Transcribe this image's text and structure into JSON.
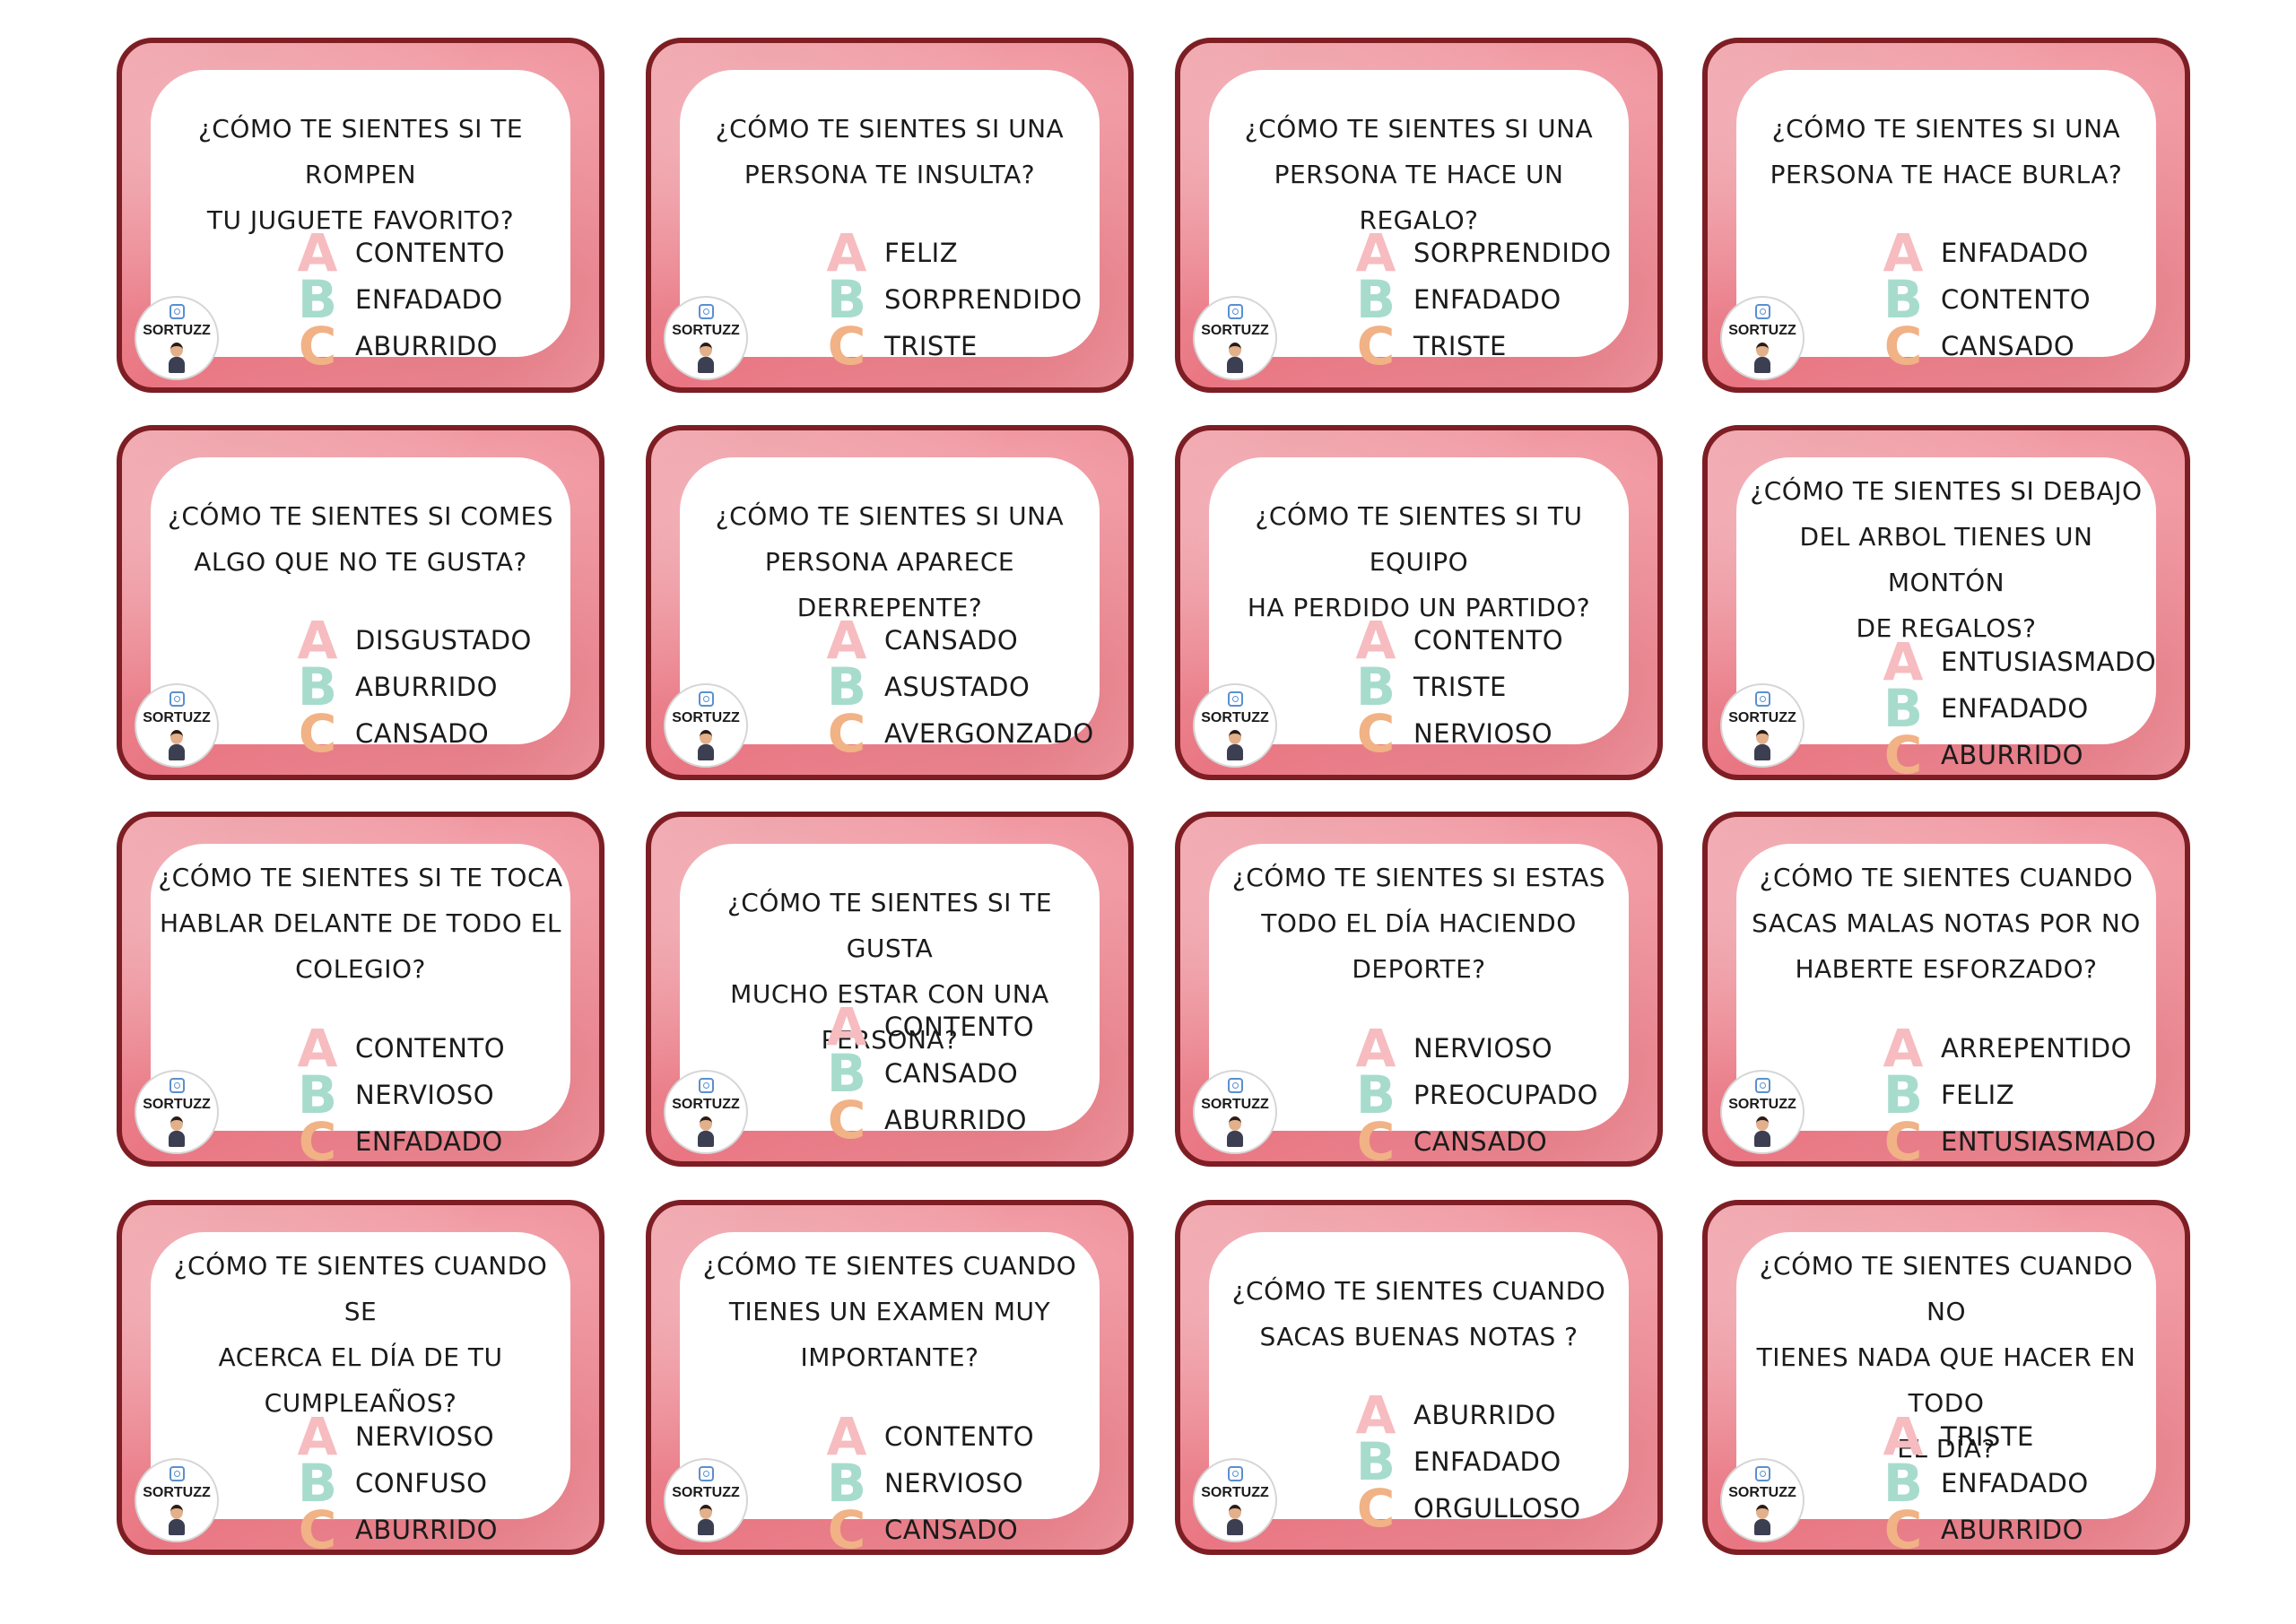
{
  "letters": {
    "a": "A",
    "b": "B",
    "c": "C"
  },
  "logo": {
    "text": "SORTUZZ",
    "icon": "instagram-icon"
  },
  "colors": {
    "card_border": "#7d1e24",
    "card_background": "#e97682",
    "letter_a": "#f6bcc0",
    "letter_b": "#a7dccd",
    "letter_c": "#f1b286"
  },
  "cards": [
    {
      "question": "¿CÓMO TE SIENTES SI TE ROMPEN\nTU JUGUETE FAVORITO?",
      "options": [
        "CONTENTO",
        "ENFADADO",
        "ABURRIDO"
      ]
    },
    {
      "question": "¿CÓMO TE SIENTES SI UNA\nPERSONA TE INSULTA?",
      "options": [
        "FELIZ",
        "SORPRENDIDO",
        "TRISTE"
      ]
    },
    {
      "question": "¿CÓMO TE SIENTES SI UNA\nPERSONA TE HACE UN REGALO?",
      "options": [
        "SORPRENDIDO",
        "ENFADADO",
        "TRISTE"
      ]
    },
    {
      "question": "¿CÓMO TE SIENTES SI UNA\nPERSONA TE HACE BURLA?",
      "options": [
        "ENFADADO",
        "CONTENTO",
        "CANSADO"
      ]
    },
    {
      "question": "¿CÓMO TE SIENTES SI COMES\nALGO QUE NO TE GUSTA?",
      "options": [
        "DISGUSTADO",
        "ABURRIDO",
        "CANSADO"
      ]
    },
    {
      "question": "¿CÓMO TE SIENTES SI UNA\nPERSONA APARECE DERREPENTE?",
      "options": [
        "CANSADO",
        "ASUSTADO",
        "AVERGONZADO"
      ]
    },
    {
      "question": "¿CÓMO TE SIENTES SI TU EQUIPO\nHA PERDIDO UN PARTIDO?",
      "options": [
        "CONTENTO",
        "TRISTE",
        "NERVIOSO"
      ]
    },
    {
      "question": "¿CÓMO TE SIENTES SI DEBAJO\nDEL ARBOL TIENES UN MONTÓN\nDE REGALOS?",
      "options": [
        "ENTUSIASMADO",
        "ENFADADO",
        "ABURRIDO"
      ]
    },
    {
      "question": "¿CÓMO TE SIENTES SI TE TOCA\nHABLAR DELANTE DE TODO EL\nCOLEGIO?",
      "options": [
        "CONTENTO",
        "NERVIOSO",
        "ENFADADO"
      ]
    },
    {
      "question": "¿CÓMO TE SIENTES SI TE GUSTA\nMUCHO ESTAR CON UNA PERSONA?",
      "options": [
        "CONTENTO",
        "CANSADO",
        "ABURRIDO"
      ]
    },
    {
      "question": "¿CÓMO TE SIENTES SI ESTAS\nTODO EL DÍA HACIENDO\nDEPORTE?",
      "options": [
        "NERVIOSO",
        "PREOCUPADO",
        "CANSADO"
      ]
    },
    {
      "question": "¿CÓMO TE SIENTES CUANDO\nSACAS MALAS NOTAS POR NO\nHABERTE ESFORZADO?",
      "options": [
        "ARREPENTIDO",
        "FELIZ",
        "ENTUSIASMADO"
      ]
    },
    {
      "question": "¿CÓMO TE SIENTES CUANDO SE\nACERCA EL DÍA DE TU\nCUMPLEAÑOS?",
      "options": [
        "NERVIOSO",
        "CONFUSO",
        "ABURRIDO"
      ]
    },
    {
      "question": "¿CÓMO TE SIENTES CUANDO\nTIENES UN EXAMEN MUY\nIMPORTANTE?",
      "options": [
        "CONTENTO",
        "NERVIOSO",
        "CANSADO"
      ]
    },
    {
      "question": "¿CÓMO TE SIENTES CUANDO\nSACAS BUENAS NOTAS ?",
      "options": [
        "ABURRIDO",
        "ENFADADO",
        "ORGULLOSO"
      ]
    },
    {
      "question": "¿CÓMO TE SIENTES CUANDO NO\nTIENES NADA QUE HACER EN TODO\nEL DÍA?",
      "options": [
        "TRISTE",
        "ENFADADO",
        "ABURRIDO"
      ]
    }
  ]
}
